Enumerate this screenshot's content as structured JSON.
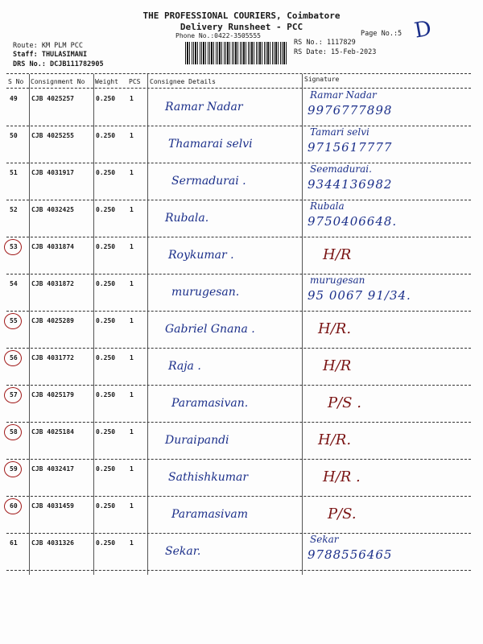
{
  "header": {
    "title": "THE PROFESSIONAL COURIERS, Coimbatore",
    "subtitle": "Delivery Runsheet - PCC",
    "phone": "Phone No.:0422-3505555",
    "page_no": "Page No.:5",
    "route": "Route: KM PLM PCC",
    "staff": "Staff: THULASIMANI",
    "drs_no": "DRS No.: DCJB111782905",
    "rs_no": "RS No.: 1117829",
    "rs_date": "RS Date: 15-Feb-2023",
    "corner_mark": "D"
  },
  "columns": [
    "S No",
    "Consignment No",
    "Weight",
    "PCS",
    "Consignee Details",
    "Signature"
  ],
  "rows": [
    {
      "sno": "49",
      "consignment": "CJB 4025257",
      "weight": "0.250",
      "pcs": "1",
      "consignee": "Ramar Nadar",
      "sig1": "Ramar Nadar",
      "sig2": "9976777898",
      "circled": false,
      "sig_color": "blue"
    },
    {
      "sno": "50",
      "consignment": "CJB 4025255",
      "weight": "0.250",
      "pcs": "1",
      "consignee": "Thamarai selvi",
      "sig1": "Tamari selvi",
      "sig2": "9715617777",
      "circled": false,
      "sig_color": "blue"
    },
    {
      "sno": "51",
      "consignment": "CJB 4031917",
      "weight": "0.250",
      "pcs": "1",
      "consignee": "Sermadurai .",
      "sig1": "Seemadurai.",
      "sig2": "9344136982",
      "circled": false,
      "sig_color": "blue"
    },
    {
      "sno": "52",
      "consignment": "CJB 4032425",
      "weight": "0.250",
      "pcs": "1",
      "consignee": "Rubala.",
      "sig1": "Rubala",
      "sig2": "9750406648.",
      "circled": false,
      "sig_color": "blue"
    },
    {
      "sno": "53",
      "consignment": "CJB 4031874",
      "weight": "0.250",
      "pcs": "1",
      "consignee": "Roykumar .",
      "sig1": "H/R",
      "sig2": "",
      "circled": true,
      "sig_color": "red"
    },
    {
      "sno": "54",
      "consignment": "CJB 4031872",
      "weight": "0.250",
      "pcs": "1",
      "consignee": "murugesan.",
      "sig1": "murugesan",
      "sig2": "95 0067 91/34.",
      "circled": false,
      "sig_color": "blue"
    },
    {
      "sno": "55",
      "consignment": "CJB 4025289",
      "weight": "0.250",
      "pcs": "1",
      "consignee": "Gabriel Gnana .",
      "sig1": "H/R.",
      "sig2": "",
      "circled": true,
      "sig_color": "red"
    },
    {
      "sno": "56",
      "consignment": "CJB 4031772",
      "weight": "0.250",
      "pcs": "1",
      "consignee": "Raja .",
      "sig1": "H/R",
      "sig2": "",
      "circled": true,
      "sig_color": "red"
    },
    {
      "sno": "57",
      "consignment": "CJB 4025179",
      "weight": "0.250",
      "pcs": "1",
      "consignee": "Paramasivan.",
      "sig1": "P/S .",
      "sig2": "",
      "circled": true,
      "sig_color": "red"
    },
    {
      "sno": "58",
      "consignment": "CJB 4025184",
      "weight": "0.250",
      "pcs": "1",
      "consignee": "Duraipandi",
      "sig1": "H/R.",
      "sig2": "",
      "circled": true,
      "sig_color": "red"
    },
    {
      "sno": "59",
      "consignment": "CJB 4032417",
      "weight": "0.250",
      "pcs": "1",
      "consignee": "Sathishkumar",
      "sig1": "H/R .",
      "sig2": "",
      "circled": true,
      "sig_color": "red"
    },
    {
      "sno": "60",
      "consignment": "CJB 4031459",
      "weight": "0.250",
      "pcs": "1",
      "consignee": "Paramasivam",
      "sig1": "P/S.",
      "sig2": "",
      "circled": true,
      "sig_color": "red"
    },
    {
      "sno": "61",
      "consignment": "CJB 4031326",
      "weight": "0.250",
      "pcs": "1",
      "consignee": "Sekar.",
      "sig1": "Sekar",
      "sig2": "9788556465",
      "circled": false,
      "sig_color": "blue"
    }
  ]
}
